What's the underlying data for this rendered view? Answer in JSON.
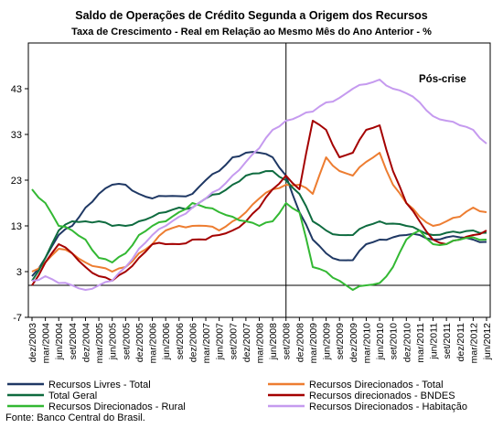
{
  "chart_data": {
    "type": "line",
    "title": "Saldo de Operações de Crédito Segunda a Origem dos Recursos",
    "subtitle": "Taxa de Crescimento - Real em Relação ao Mesmo Mês do Ano Anterior - %",
    "annotation": "Pós-crise",
    "source": "Fonte: Banco Central do Brasil.",
    "ylim": [
      -7,
      53
    ],
    "yticks": [
      -7,
      3,
      13,
      23,
      33,
      43
    ],
    "x_range": [
      "dez/2003",
      "jun/2012"
    ],
    "x_ticks": [
      "dez/2003",
      "mar/2004",
      "jun/2004",
      "set/2004",
      "dez/2004",
      "mar/2005",
      "jun/2005",
      "set/2005",
      "dez/2005",
      "mar/2006",
      "jun/2006",
      "set/2006",
      "dez/2006",
      "mar/2007",
      "jun/2007",
      "set/2007",
      "dez/2007",
      "mar/2008",
      "jun/2008",
      "set/2008",
      "dez/2008",
      "mar/2009",
      "jun/2009",
      "set/2009",
      "dez/2009",
      "mar/2010",
      "jun/2010",
      "set/2010",
      "dez/2010",
      "mar/2011",
      "jun/2011",
      "set/2011",
      "dez/2011",
      "mar/2012",
      "jun/2012"
    ],
    "vline": "set/2008",
    "hline": 0,
    "grid": false,
    "legend_position": "bottom",
    "series": [
      {
        "name": "Recursos Livres - Total",
        "color": "#1F3864",
        "points": [
          [
            "dez/2003",
            2
          ],
          [
            "mar/2004",
            6
          ],
          [
            "jun/2004",
            11
          ],
          [
            "set/2004",
            13
          ],
          [
            "dez/2004",
            17
          ],
          [
            "mar/2005",
            20
          ],
          [
            "jun/2005",
            22
          ],
          [
            "set/2005",
            22
          ],
          [
            "dez/2005",
            20
          ],
          [
            "mar/2006",
            19
          ],
          [
            "jun/2006",
            19.5
          ],
          [
            "set/2006",
            19.5
          ],
          [
            "dez/2006",
            20
          ],
          [
            "mar/2007",
            23
          ],
          [
            "jun/2007",
            25
          ],
          [
            "set/2007",
            28
          ],
          [
            "dez/2007",
            29
          ],
          [
            "mar/2008",
            29
          ],
          [
            "jun/2008",
            28
          ],
          [
            "set/2008",
            24
          ],
          [
            "dez/2008",
            16
          ],
          [
            "mar/2009",
            10
          ],
          [
            "jun/2009",
            7
          ],
          [
            "set/2009",
            5.5
          ],
          [
            "dez/2009",
            5.5
          ],
          [
            "mar/2010",
            9
          ],
          [
            "jun/2010",
            10
          ],
          [
            "set/2010",
            10.5
          ],
          [
            "dez/2010",
            11
          ],
          [
            "mar/2011",
            11
          ],
          [
            "jun/2011",
            10
          ],
          [
            "set/2011",
            10.5
          ],
          [
            "dez/2011",
            10.5
          ],
          [
            "mar/2012",
            10
          ],
          [
            "jun/2012",
            9.5
          ]
        ]
      },
      {
        "name": "Recursos Direcionados - Total",
        "color": "#ED7D31",
        "points": [
          [
            "dez/2003",
            3
          ],
          [
            "mar/2004",
            5
          ],
          [
            "jun/2004",
            8
          ],
          [
            "set/2004",
            7
          ],
          [
            "dez/2004",
            5
          ],
          [
            "mar/2005",
            4
          ],
          [
            "jun/2005",
            3
          ],
          [
            "set/2005",
            4
          ],
          [
            "dez/2005",
            7
          ],
          [
            "mar/2006",
            9
          ],
          [
            "jun/2006",
            12
          ],
          [
            "set/2006",
            13
          ],
          [
            "dez/2006",
            13
          ],
          [
            "mar/2007",
            13
          ],
          [
            "jun/2007",
            12
          ],
          [
            "set/2007",
            14
          ],
          [
            "dez/2007",
            16
          ],
          [
            "mar/2008",
            19
          ],
          [
            "jun/2008",
            21
          ],
          [
            "set/2008",
            22
          ],
          [
            "dez/2008",
            22
          ],
          [
            "mar/2009",
            20
          ],
          [
            "jun/2009",
            28
          ],
          [
            "set/2009",
            25
          ],
          [
            "dez/2009",
            24
          ],
          [
            "mar/2010",
            27
          ],
          [
            "jun/2010",
            29
          ],
          [
            "set/2010",
            22
          ],
          [
            "dez/2010",
            18
          ],
          [
            "mar/2011",
            15
          ],
          [
            "jun/2011",
            13
          ],
          [
            "set/2011",
            14
          ],
          [
            "dez/2011",
            15
          ],
          [
            "mar/2012",
            17
          ],
          [
            "jun/2012",
            16
          ]
        ]
      },
      {
        "name": "Total Geral",
        "color": "#0E6B3F",
        "points": [
          [
            "dez/2003",
            1
          ],
          [
            "mar/2004",
            6
          ],
          [
            "jun/2004",
            12
          ],
          [
            "set/2004",
            14
          ],
          [
            "dez/2004",
            14
          ],
          [
            "mar/2005",
            14
          ],
          [
            "jun/2005",
            13
          ],
          [
            "set/2005",
            13
          ],
          [
            "dez/2005",
            14
          ],
          [
            "mar/2006",
            15
          ],
          [
            "jun/2006",
            16
          ],
          [
            "set/2006",
            17
          ],
          [
            "dez/2006",
            17
          ],
          [
            "mar/2007",
            19
          ],
          [
            "jun/2007",
            20
          ],
          [
            "set/2007",
            22
          ],
          [
            "dez/2007",
            24
          ],
          [
            "mar/2008",
            24.5
          ],
          [
            "jun/2008",
            25
          ],
          [
            "set/2008",
            23
          ],
          [
            "dez/2008",
            20
          ],
          [
            "mar/2009",
            14
          ],
          [
            "jun/2009",
            12
          ],
          [
            "set/2009",
            11
          ],
          [
            "dez/2009",
            11
          ],
          [
            "mar/2010",
            13
          ],
          [
            "jun/2010",
            14
          ],
          [
            "set/2010",
            13.5
          ],
          [
            "dez/2010",
            13
          ],
          [
            "mar/2011",
            12
          ],
          [
            "jun/2011",
            11
          ],
          [
            "set/2011",
            11.5
          ],
          [
            "dez/2011",
            11.5
          ],
          [
            "mar/2012",
            12
          ],
          [
            "jun/2012",
            11.5
          ]
        ]
      },
      {
        "name": "Recursos direcionados - BNDES",
        "color": "#A40000",
        "points": [
          [
            "dez/2003",
            0
          ],
          [
            "mar/2004",
            5
          ],
          [
            "jun/2004",
            9
          ],
          [
            "set/2004",
            7
          ],
          [
            "dez/2004",
            4
          ],
          [
            "mar/2005",
            2
          ],
          [
            "jun/2005",
            1
          ],
          [
            "set/2005",
            3
          ],
          [
            "dez/2005",
            6
          ],
          [
            "mar/2006",
            9
          ],
          [
            "jun/2006",
            9
          ],
          [
            "set/2006",
            9
          ],
          [
            "dez/2006",
            10
          ],
          [
            "mar/2007",
            10
          ],
          [
            "jun/2007",
            11
          ],
          [
            "set/2007",
            12
          ],
          [
            "dez/2007",
            14
          ],
          [
            "mar/2008",
            17
          ],
          [
            "jun/2008",
            21
          ],
          [
            "set/2008",
            24
          ],
          [
            "dez/2008",
            21
          ],
          [
            "mar/2009",
            36
          ],
          [
            "jun/2009",
            34
          ],
          [
            "set/2009",
            28
          ],
          [
            "dez/2009",
            29
          ],
          [
            "mar/2010",
            34
          ],
          [
            "jun/2010",
            35
          ],
          [
            "set/2010",
            25
          ],
          [
            "dez/2010",
            18
          ],
          [
            "mar/2011",
            14
          ],
          [
            "jun/2011",
            10
          ],
          [
            "set/2011",
            9
          ],
          [
            "dez/2011",
            10
          ],
          [
            "mar/2012",
            11
          ],
          [
            "jun/2012",
            12
          ]
        ]
      },
      {
        "name": "Recursos Direcionados - Rural",
        "color": "#33B833",
        "points": [
          [
            "dez/2003",
            21
          ],
          [
            "mar/2004",
            18
          ],
          [
            "jun/2004",
            13
          ],
          [
            "set/2004",
            12
          ],
          [
            "dez/2004",
            10
          ],
          [
            "mar/2005",
            6
          ],
          [
            "jun/2005",
            5
          ],
          [
            "set/2005",
            7
          ],
          [
            "dez/2005",
            11
          ],
          [
            "mar/2006",
            13
          ],
          [
            "jun/2006",
            14
          ],
          [
            "set/2006",
            16
          ],
          [
            "dez/2006",
            18
          ],
          [
            "mar/2007",
            17
          ],
          [
            "jun/2007",
            16
          ],
          [
            "set/2007",
            15
          ],
          [
            "dez/2007",
            14
          ],
          [
            "mar/2008",
            13
          ],
          [
            "jun/2008",
            14
          ],
          [
            "set/2008",
            18
          ],
          [
            "dez/2008",
            16
          ],
          [
            "mar/2009",
            4
          ],
          [
            "jun/2009",
            3
          ],
          [
            "set/2009",
            1
          ],
          [
            "dez/2009",
            -1
          ],
          [
            "mar/2010",
            0
          ],
          [
            "jun/2010",
            0.5
          ],
          [
            "set/2010",
            4
          ],
          [
            "dez/2010",
            10
          ],
          [
            "mar/2011",
            12
          ],
          [
            "jun/2011",
            9
          ],
          [
            "set/2011",
            9
          ],
          [
            "dez/2011",
            10
          ],
          [
            "mar/2012",
            10.5
          ],
          [
            "jun/2012",
            10
          ]
        ]
      },
      {
        "name": "Recursos Direcionados - Habitação",
        "color": "#C59AEF",
        "points": [
          [
            "dez/2003",
            1
          ],
          [
            "mar/2004",
            2
          ],
          [
            "jun/2004",
            0.5
          ],
          [
            "set/2004",
            0
          ],
          [
            "dez/2004",
            -1
          ],
          [
            "mar/2005",
            0
          ],
          [
            "jun/2005",
            1
          ],
          [
            "set/2005",
            4
          ],
          [
            "dez/2005",
            8
          ],
          [
            "mar/2006",
            11
          ],
          [
            "jun/2006",
            13
          ],
          [
            "set/2006",
            15
          ],
          [
            "dez/2006",
            17
          ],
          [
            "mar/2007",
            19
          ],
          [
            "jun/2007",
            21
          ],
          [
            "set/2007",
            24
          ],
          [
            "dez/2007",
            27
          ],
          [
            "mar/2008",
            30
          ],
          [
            "jun/2008",
            34
          ],
          [
            "set/2008",
            36
          ],
          [
            "dez/2008",
            37
          ],
          [
            "mar/2009",
            38
          ],
          [
            "jun/2009",
            40
          ],
          [
            "set/2009",
            41
          ],
          [
            "dez/2009",
            43
          ],
          [
            "mar/2010",
            44
          ],
          [
            "jun/2010",
            45
          ],
          [
            "set/2010",
            43
          ],
          [
            "dez/2010",
            42
          ],
          [
            "mar/2011",
            40
          ],
          [
            "jun/2011",
            37
          ],
          [
            "set/2011",
            36
          ],
          [
            "dez/2011",
            35
          ],
          [
            "mar/2012",
            34
          ],
          [
            "jun/2012",
            31
          ]
        ]
      }
    ]
  }
}
